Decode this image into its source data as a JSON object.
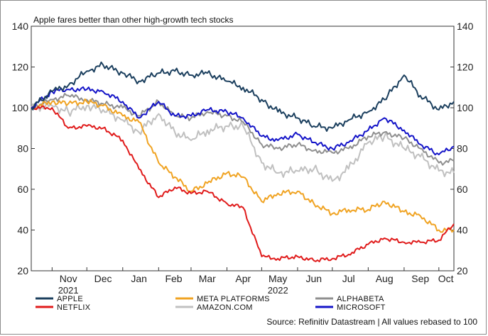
{
  "chart_data": {
    "type": "line",
    "title": "Apple fares better than other high-growth tech stocks",
    "source": "Source: Refinitiv Datastream | All values rebased to 100",
    "ylim": [
      20,
      140
    ],
    "yticks": [
      20,
      40,
      60,
      80,
      100,
      120,
      140
    ],
    "grid": false,
    "legend_position": "bottom",
    "x_dates": [
      "Oct 14 2021",
      "Nov 1 2021",
      "Nov 15 2021",
      "Dec 1 2021",
      "Dec 15 2021",
      "Jan 1 2022",
      "Jan 15 2022",
      "Feb 1 2022",
      "Feb 15 2022",
      "Mar 1 2022",
      "Mar 15 2022",
      "Apr 1 2022",
      "Apr 15 2022",
      "May 1 2022",
      "May 15 2022",
      "Jun 1 2022",
      "Jun 15 2022",
      "Jul 1 2022",
      "Jul 15 2022",
      "Aug 1 2022",
      "Aug 15 2022",
      "Sep 1 2022",
      "Sep 15 2022",
      "Oct 1 2022",
      "Oct 14 2022"
    ],
    "x_tick_labels": [
      "Nov",
      "Dec",
      "Jan",
      "Feb",
      "Mar",
      "Apr",
      "May",
      "Jun",
      "Jul",
      "Aug",
      "Sep",
      "Oct"
    ],
    "x_tick_years": [
      {
        "label": "2021",
        "under": "Nov"
      },
      {
        "label": "2022",
        "under": "May"
      }
    ],
    "series": [
      {
        "name": "APPLE",
        "color": "#1b3f5e",
        "values": [
          100,
          108,
          111,
          118,
          121,
          117,
          113,
          117,
          118,
          116,
          117,
          113,
          110,
          104,
          98,
          95,
          91,
          90,
          94,
          98,
          104,
          116,
          106,
          99,
          103
        ]
      },
      {
        "name": "NETFLIX",
        "color": "#e01b1b",
        "values": [
          100,
          100,
          90,
          91,
          90,
          84,
          70,
          56,
          61,
          58,
          59,
          53,
          51,
          27,
          26,
          27,
          25,
          26,
          28,
          33,
          36,
          34,
          34,
          35,
          43
        ]
      },
      {
        "name": "META PLATFORMS",
        "color": "#f0a322",
        "values": [
          100,
          103,
          102,
          103,
          101,
          96,
          93,
          73,
          66,
          59,
          63,
          68,
          66,
          54,
          58,
          59,
          53,
          48,
          50,
          50,
          54,
          49,
          47,
          40,
          40
        ]
      },
      {
        "name": "AMAZON.COM",
        "color": "#c0c0c0",
        "values": [
          100,
          101,
          98,
          101,
          99,
          94,
          88,
          97,
          88,
          84,
          89,
          91,
          91,
          73,
          68,
          69,
          70,
          64,
          70,
          83,
          86,
          80,
          76,
          69,
          68
        ]
      },
      {
        "name": "ALPHABETA",
        "color": "#8f8f8f",
        "values": [
          100,
          104,
          106,
          104,
          102,
          100,
          96,
          103,
          96,
          95,
          98,
          96,
          93,
          82,
          80,
          82,
          79,
          78,
          80,
          86,
          88,
          85,
          80,
          73,
          74
        ]
      },
      {
        "name": "MICROSOFT",
        "color": "#1414c8",
        "values": [
          100,
          108,
          109,
          109,
          108,
          103,
          95,
          103,
          96,
          96,
          99,
          98,
          95,
          86,
          84,
          87,
          83,
          80,
          83,
          89,
          95,
          89,
          82,
          77,
          81
        ]
      }
    ]
  }
}
